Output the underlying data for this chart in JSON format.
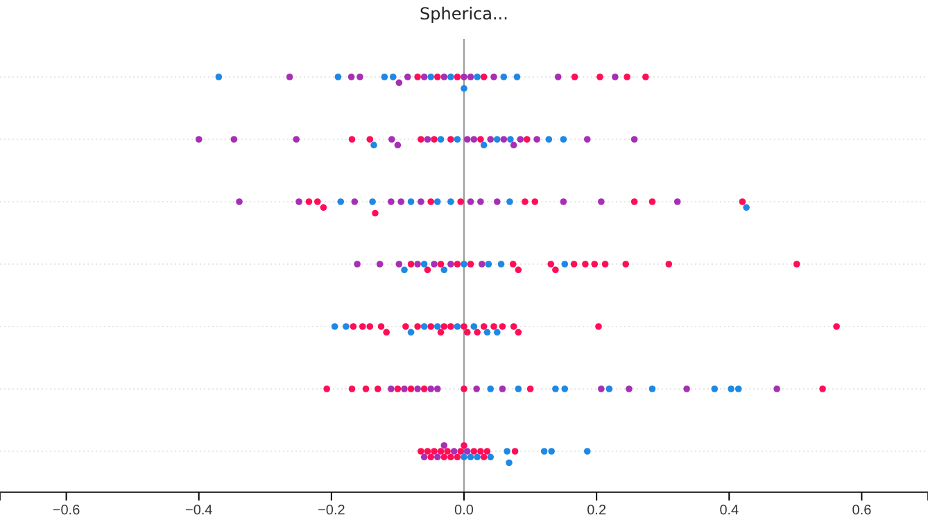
{
  "chart_data": {
    "type": "scatter",
    "title": "Spherica...",
    "orientation": "horizontal",
    "tick_labels": "x",
    "grid": "y",
    "categories": [
      null,
      null,
      null,
      null,
      null,
      null,
      null
    ],
    "xlim": [
      -0.7,
      0.7
    ],
    "xticks": [
      {
        "value": -0.6,
        "label": "−0.6"
      },
      {
        "value": -0.4,
        "label": "−0.4"
      },
      {
        "value": -0.2,
        "label": "−0.2"
      },
      {
        "value": 0,
        "label": "0.0"
      },
      {
        "value": 0.2,
        "label": "0.2"
      },
      {
        "value": 0.4,
        "label": "0.4"
      },
      {
        "value": 0.6,
        "label": "0.6"
      }
    ],
    "ref_lines": [
      {
        "axis": "x",
        "value": 0,
        "label": null,
        "color": "#999999"
      }
    ],
    "series": [
      {
        "values": [
          -0.37,
          -0.4,
          -0.339,
          -0.161,
          -0.195,
          -0.207,
          -0.065
        ],
        "colors": [
          "#1e88e5",
          "#a62fb5",
          "#a62fb5",
          "#a62fb5",
          "#1e88e5",
          "#ff0d57",
          "#ff0d57"
        ]
      },
      {
        "values": [
          -0.263,
          -0.347,
          -0.249,
          -0.127,
          -0.178,
          -0.169,
          -0.06
        ],
        "colors": [
          "#a62fb5",
          "#a62fb5",
          "#a62fb5",
          "#a62fb5",
          "#1e88e5",
          "#ff0d57",
          "#a62fb5"
        ]
      },
      {
        "values": [
          -0.19,
          -0.253,
          -0.234,
          -0.098,
          -0.167,
          -0.148,
          -0.05
        ],
        "colors": [
          "#1e88e5",
          "#a62fb5",
          "#ff0d57",
          "#a62fb5",
          "#ff0d57",
          "#ff0d57",
          "#ff0d57"
        ]
      },
      {
        "values": [
          -0.17,
          -0.169,
          -0.221,
          -0.09,
          -0.153,
          -0.13,
          -0.045
        ],
        "colors": [
          "#a62fb5",
          "#ff0d57",
          "#ff0d57",
          "#1e88e5",
          "#ff0d57",
          "#ff0d57",
          "#ff0d57"
        ]
      },
      {
        "values": [
          -0.157,
          -0.142,
          -0.212,
          -0.08,
          -0.142,
          0.403,
          -0.04
        ],
        "colors": [
          "#a62fb5",
          "#ff0d57",
          "#ff0d57",
          "#ff0d57",
          "#ff0d57",
          "#1e88e5",
          "#a62fb5"
        ]
      },
      {
        "values": [
          -0.12,
          -0.136,
          -0.186,
          -0.07,
          -0.125,
          -0.11,
          -0.035
        ],
        "colors": [
          "#1e88e5",
          "#1e88e5",
          "#1e88e5",
          "#a62fb5",
          "#ff0d57",
          "#a62fb5",
          "#ff0d57"
        ]
      },
      {
        "values": [
          -0.107,
          -0.109,
          -0.165,
          -0.06,
          -0.117,
          -0.1,
          -0.03
        ],
        "colors": [
          "#1e88e5",
          "#a62fb5",
          "#a62fb5",
          "#1e88e5",
          "#ff0d57",
          "#ff0d57",
          "#ff0d57"
        ]
      },
      {
        "values": [
          -0.098,
          -0.1,
          -0.138,
          -0.055,
          -0.088,
          -0.09,
          -0.03
        ],
        "colors": [
          "#a62fb5",
          "#a62fb5",
          "#1e88e5",
          "#ff0d57",
          "#ff0d57",
          "#a62fb5",
          "#a62fb5"
        ]
      },
      {
        "values": [
          -0.085,
          -0.065,
          -0.134,
          -0.045,
          -0.08,
          -0.08,
          -0.025
        ],
        "colors": [
          "#a62fb5",
          "#ff0d57",
          "#ff0d57",
          "#a62fb5",
          "#1e88e5",
          "#ff0d57",
          "#ff0d57"
        ]
      },
      {
        "values": [
          -0.07,
          -0.055,
          -0.11,
          -0.035,
          -0.07,
          -0.07,
          -0.02
        ],
        "colors": [
          "#ff0d57",
          "#a62fb5",
          "#a62fb5",
          "#ff0d57",
          "#ff0d57",
          "#a62fb5",
          "#ff0d57"
        ]
      },
      {
        "values": [
          -0.06,
          -0.045,
          -0.095,
          -0.03,
          -0.06,
          -0.06,
          -0.015
        ],
        "colors": [
          "#a62fb5",
          "#ff0d57",
          "#a62fb5",
          "#1e88e5",
          "#1e88e5",
          "#ff0d57",
          "#a62fb5"
        ]
      },
      {
        "values": [
          -0.05,
          -0.035,
          -0.08,
          -0.02,
          -0.05,
          -0.05,
          -0.01
        ],
        "colors": [
          "#1e88e5",
          "#1e88e5",
          "#1e88e5",
          "#a62fb5",
          "#ff0d57",
          "#a62fb5",
          "#ff0d57"
        ]
      },
      {
        "values": [
          -0.04,
          -0.02,
          -0.065,
          -0.01,
          -0.04,
          -0.04,
          -0.005
        ],
        "colors": [
          "#ff0d57",
          "#ff0d57",
          "#a62fb5",
          "#ff0d57",
          "#1e88e5",
          "#a62fb5",
          "#ff0d57"
        ]
      },
      {
        "values": [
          -0.03,
          -0.01,
          -0.05,
          0.0,
          -0.03,
          0.541,
          0.0
        ],
        "colors": [
          "#a62fb5",
          "#1e88e5",
          "#ff0d57",
          "#1e88e5",
          "#ff0d57",
          "#ff0d57",
          "#1e88e5"
        ]
      },
      {
        "values": [
          -0.02,
          0.005,
          -0.04,
          0.01,
          -0.02,
          0.0,
          0.0
        ],
        "colors": [
          "#1e88e5",
          "#a62fb5",
          "#1e88e5",
          "#ff0d57",
          "#ff0d57",
          "#ff0d57",
          "#ff0d57"
        ]
      },
      {
        "values": [
          -0.01,
          0.015,
          0.426,
          0.027,
          -0.01,
          0.019,
          0.005
        ],
        "colors": [
          "#ff0d57",
          "#a62fb5",
          "#1e88e5",
          "#a62fb5",
          "#1e88e5",
          "#a62fb5",
          "#a62fb5"
        ]
      },
      {
        "values": [
          0.0,
          0.025,
          -0.02,
          0.037,
          0.0,
          0.04,
          0.01
        ],
        "colors": [
          "#a62fb5",
          "#ff0d57",
          "#1e88e5",
          "#1e88e5",
          "#ff0d57",
          "#1e88e5",
          "#1e88e5"
        ]
      },
      {
        "values": [
          0.0,
          0.03,
          -0.005,
          0.056,
          0.005,
          0.058,
          0.015
        ],
        "colors": [
          "#1e88e5",
          "#1e88e5",
          "#ff0d57",
          "#1e88e5",
          "#ff0d57",
          "#a62fb5",
          "#ff0d57"
        ]
      },
      {
        "values": [
          0.01,
          0.04,
          0.01,
          0.074,
          0.015,
          0.082,
          0.02
        ],
        "colors": [
          "#a62fb5",
          "#a62fb5",
          "#a62fb5",
          "#ff0d57",
          "#1e88e5",
          "#1e88e5",
          "#1e88e5"
        ]
      },
      {
        "values": [
          0.02,
          0.05,
          0.025,
          0.082,
          0.02,
          0.1,
          0.025
        ],
        "colors": [
          "#1e88e5",
          "#1e88e5",
          "#a62fb5",
          "#ff0d57",
          "#ff0d57",
          "#ff0d57",
          "#ff0d57"
        ]
      },
      {
        "values": [
          0.03,
          0.06,
          0.05,
          0.131,
          0.03,
          0.138,
          0.03
        ],
        "colors": [
          "#ff0d57",
          "#a62fb5",
          "#a62fb5",
          "#ff0d57",
          "#ff0d57",
          "#1e88e5",
          "#ff0d57"
        ]
      },
      {
        "values": [
          0.045,
          0.07,
          0.069,
          0.138,
          0.035,
          0.152,
          0.035
        ],
        "colors": [
          "#a62fb5",
          "#1e88e5",
          "#1e88e5",
          "#ff0d57",
          "#1e88e5",
          "#1e88e5",
          "#ff0d57"
        ]
      },
      {
        "values": [
          0.06,
          0.075,
          0.092,
          0.152,
          0.045,
          0.207,
          0.04
        ],
        "colors": [
          "#1e88e5",
          "#a62fb5",
          "#ff0d57",
          "#1e88e5",
          "#ff0d57",
          "#a62fb5",
          "#1e88e5"
        ]
      },
      {
        "values": [
          0.08,
          0.085,
          0.107,
          0.166,
          0.05,
          0.219,
          0.065
        ],
        "colors": [
          "#1e88e5",
          "#a62fb5",
          "#ff0d57",
          "#ff0d57",
          "#1e88e5",
          "#1e88e5",
          "#1e88e5"
        ]
      },
      {
        "values": [
          0.142,
          0.095,
          0.15,
          0.183,
          0.058,
          0.249,
          0.068
        ],
        "colors": [
          "#a62fb5",
          "#ff0d57",
          "#a62fb5",
          "#ff0d57",
          "#ff0d57",
          "#a62fb5",
          "#1e88e5"
        ]
      },
      {
        "values": [
          0.167,
          0.11,
          0.207,
          0.197,
          -0.035,
          0.284,
          0.077
        ],
        "colors": [
          "#ff0d57",
          "#a62fb5",
          "#a62fb5",
          "#ff0d57",
          "#ff0d57",
          "#1e88e5",
          "#ff0d57"
        ]
      },
      {
        "values": [
          0.205,
          0.128,
          0.257,
          0.213,
          0.075,
          0.336,
          0.121
        ],
        "colors": [
          "#ff0d57",
          "#1e88e5",
          "#ff0d57",
          "#ff0d57",
          "#ff0d57",
          "#a62fb5",
          "#1e88e5"
        ]
      },
      {
        "values": [
          0.228,
          0.15,
          0.284,
          0.244,
          0.082,
          0.378,
          0.132
        ],
        "colors": [
          "#a62fb5",
          "#1e88e5",
          "#ff0d57",
          "#ff0d57",
          "#ff0d57",
          "#1e88e5",
          "#1e88e5"
        ]
      },
      {
        "values": [
          0.246,
          0.186,
          0.322,
          0.309,
          0.203,
          0.414,
          0.186
        ],
        "colors": [
          "#ff0d57",
          "#a62fb5",
          "#a62fb5",
          "#ff0d57",
          "#ff0d57",
          "#1e88e5",
          "#1e88e5"
        ]
      },
      {
        "values": [
          0.274,
          0.257,
          0.42,
          0.502,
          0.562,
          0.472,
          -0.055
        ],
        "colors": [
          "#ff0d57",
          "#a62fb5",
          "#ff0d57",
          "#ff0d57",
          "#ff0d57",
          "#a62fb5",
          "#ff0d57"
        ]
      }
    ]
  }
}
